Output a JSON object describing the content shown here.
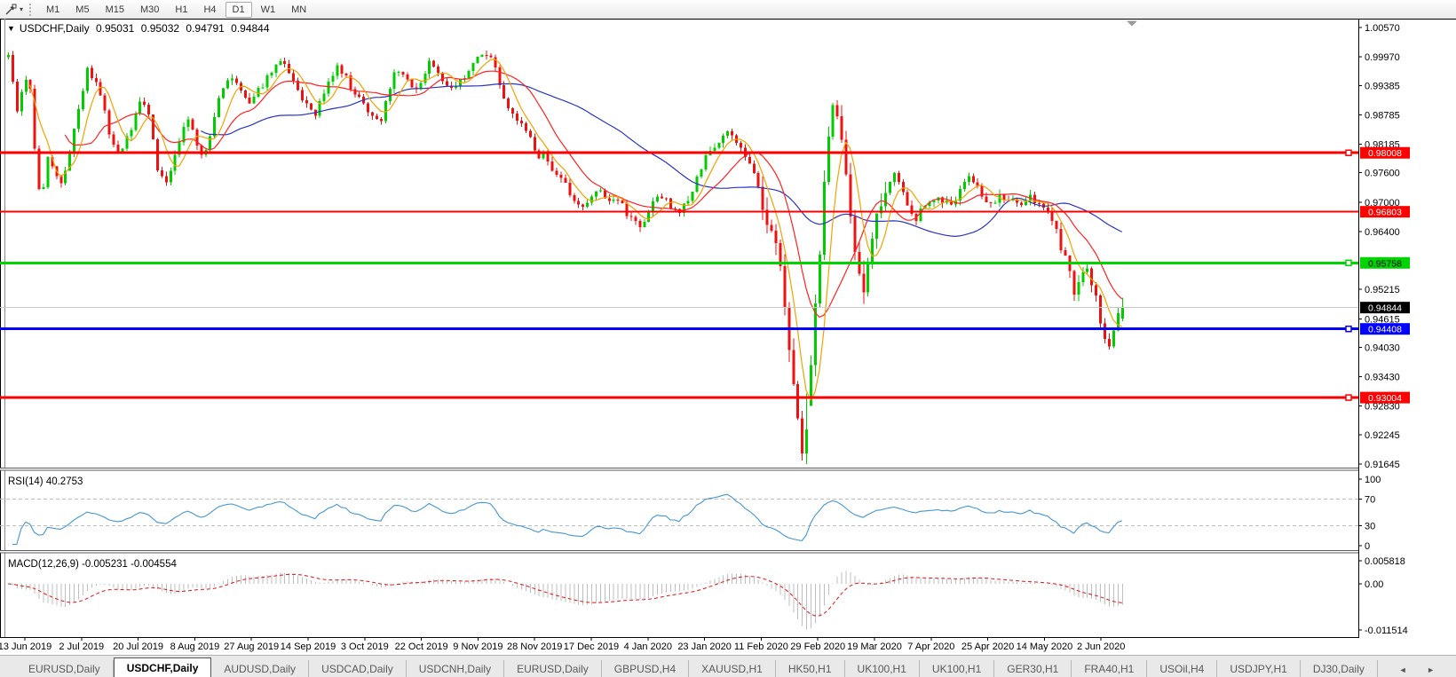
{
  "toolbar": {
    "cursor_icon": "chart-pointer-tool",
    "dropdown_glyph": "▾",
    "timeframes": [
      "M1",
      "M5",
      "M15",
      "M30",
      "H1",
      "H4",
      "D1",
      "W1",
      "MN"
    ],
    "active_timeframe": "D1"
  },
  "chart": {
    "dropdown_glyph": "▼",
    "title": "USDCHF,Daily",
    "open": "0.95031",
    "high": "0.95032",
    "low": "0.94791",
    "close": "0.94844"
  },
  "indicators": {
    "rsi": {
      "label": "RSI(14) 40.2753",
      "period": 14,
      "value": "40.2753",
      "levels": [
        100,
        70,
        30,
        0
      ],
      "line_color": "#4496d4"
    },
    "macd": {
      "label": "MACD(12,26,9) -0.005231 -0.004554",
      "params": "12,26,9",
      "macd_value": "-0.005231",
      "signal_value": "-0.004554",
      "axis_labels": [
        "0.005818",
        "0.00",
        "-0.011514"
      ],
      "histogram_color": "#bfbfbf",
      "signal_color": "#e01212"
    }
  },
  "chart_data": {
    "type": "candlestick",
    "title": "USDCHF,Daily",
    "symbol": "USDCHF",
    "timeframe": "Daily",
    "ohlc": {
      "open": "0.95031",
      "high": "0.95032",
      "low": "0.94791",
      "close": "0.94844"
    },
    "ylim": [
      0.9135,
      1.0075
    ],
    "candle_up_color": "#00cc00",
    "candle_down_color": "#ee1111",
    "y_axis_ticks": [
      "1.00570",
      "0.99970",
      "0.99385",
      "0.98785",
      "0.98185",
      "0.97600",
      "0.97000",
      "0.96400",
      "0.95215",
      "0.94615",
      "0.94030",
      "0.93430",
      "0.92830",
      "0.92245",
      "0.91645"
    ],
    "x_axis_dates": [
      "13 Jun 2019",
      "2 Jul 2019",
      "20 Jul 2019",
      "8 Aug 2019",
      "27 Aug 2019",
      "14 Sep 2019",
      "3 Oct 2019",
      "22 Oct 2019",
      "9 Nov 2019",
      "28 Nov 2019",
      "17 Dec 2019",
      "4 Jan 2020",
      "23 Jan 2020",
      "11 Feb 2020",
      "29 Feb 2020",
      "19 Mar 2020",
      "7 Apr 2020",
      "25 Apr 2020",
      "14 May 2020",
      "2 Jun 2020"
    ],
    "horizontal_lines": [
      {
        "price": "0.98008",
        "color": "#ff0000",
        "label_text_color": "#ffffff",
        "thickness": 3,
        "handle": true
      },
      {
        "price": "0.96803",
        "color": "#ff0000",
        "label_text_color": "#ffffff",
        "thickness": 2,
        "handle": false
      },
      {
        "price": "0.95758",
        "color": "#00d400",
        "label_text_color": "#000000",
        "thickness": 3,
        "handle": true
      },
      {
        "price": "0.94408",
        "color": "#0000ff",
        "label_text_color": "#ffffff",
        "thickness": 3,
        "handle": true
      },
      {
        "price": "0.93004",
        "color": "#ff0000",
        "label_text_color": "#ffffff",
        "thickness": 3,
        "handle": true
      }
    ],
    "current_price": {
      "value": "0.94844",
      "line_color": "#c9c9c9",
      "label_bg": "#000000",
      "label_text_color": "#ffffff"
    },
    "moving_averages": [
      {
        "name": "fast-ma",
        "period": 6,
        "color": "#f2a200"
      },
      {
        "name": "medium-ma",
        "period": 14,
        "color": "#ff2222"
      },
      {
        "name": "slow-ma",
        "period": 45,
        "color": "#2a35c0"
      }
    ],
    "price_path": [
      [
        0,
        0.995
      ],
      [
        8,
        0.9995
      ],
      [
        14,
        1.0
      ],
      [
        20,
        0.987
      ],
      [
        28,
        0.994
      ],
      [
        35,
        0.996
      ],
      [
        42,
        0.979
      ],
      [
        48,
        0.97
      ],
      [
        56,
        0.979
      ],
      [
        64,
        0.9755
      ],
      [
        72,
        0.974
      ],
      [
        80,
        0.98
      ],
      [
        88,
        0.987
      ],
      [
        100,
        0.997
      ],
      [
        108,
        0.995
      ],
      [
        116,
        0.992
      ],
      [
        124,
        0.985
      ],
      [
        132,
        0.98
      ],
      [
        140,
        0.981
      ],
      [
        150,
        0.985
      ],
      [
        160,
        0.991
      ],
      [
        170,
        0.9875
      ],
      [
        180,
        0.976
      ],
      [
        190,
        0.9745
      ],
      [
        198,
        0.9785
      ],
      [
        208,
        0.985
      ],
      [
        215,
        0.987
      ],
      [
        222,
        0.983
      ],
      [
        230,
        0.979
      ],
      [
        240,
        0.984
      ],
      [
        250,
        0.992
      ],
      [
        258,
        0.9955
      ],
      [
        266,
        0.9945
      ],
      [
        275,
        0.992
      ],
      [
        283,
        0.99
      ],
      [
        292,
        0.9925
      ],
      [
        300,
        0.9945
      ],
      [
        310,
        0.9975
      ],
      [
        320,
        0.999
      ],
      [
        330,
        0.996
      ],
      [
        340,
        0.992
      ],
      [
        350,
        0.9895
      ],
      [
        358,
        0.988
      ],
      [
        366,
        0.992
      ],
      [
        374,
        0.9955
      ],
      [
        382,
        0.9975
      ],
      [
        390,
        0.996
      ],
      [
        398,
        0.993
      ],
      [
        406,
        0.992
      ],
      [
        414,
        0.989
      ],
      [
        422,
        0.987
      ],
      [
        430,
        0.986
      ],
      [
        438,
        0.992
      ],
      [
        446,
        0.996
      ],
      [
        454,
        0.997
      ],
      [
        462,
        0.9945
      ],
      [
        470,
        0.993
      ],
      [
        478,
        0.9945
      ],
      [
        486,
        0.9985
      ],
      [
        494,
        0.9965
      ],
      [
        502,
        0.9945
      ],
      [
        510,
        0.993
      ],
      [
        518,
        0.9945
      ],
      [
        526,
        0.996
      ],
      [
        534,
        0.9985
      ],
      [
        542,
        1.0
      ],
      [
        550,
        1.0005
      ],
      [
        558,
        0.9985
      ],
      [
        566,
        0.993
      ],
      [
        574,
        0.989
      ],
      [
        582,
        0.9875
      ],
      [
        590,
        0.986
      ],
      [
        598,
        0.984
      ],
      [
        606,
        0.979
      ],
      [
        614,
        0.98
      ],
      [
        622,
        0.977
      ],
      [
        630,
        0.976
      ],
      [
        638,
        0.9745
      ],
      [
        646,
        0.9705
      ],
      [
        654,
        0.9695
      ],
      [
        662,
        0.969
      ],
      [
        670,
        0.972
      ],
      [
        678,
        0.973
      ],
      [
        686,
        0.97
      ],
      [
        694,
        0.971
      ],
      [
        702,
        0.9695
      ],
      [
        710,
        0.967
      ],
      [
        718,
        0.966
      ],
      [
        726,
        0.9645
      ],
      [
        734,
        0.969
      ],
      [
        742,
        0.9715
      ],
      [
        750,
        0.971
      ],
      [
        758,
        0.9685
      ],
      [
        766,
        0.968
      ],
      [
        774,
        0.9695
      ],
      [
        782,
        0.9725
      ],
      [
        790,
        0.976
      ],
      [
        798,
        0.9795
      ],
      [
        806,
        0.9815
      ],
      [
        814,
        0.9825
      ],
      [
        822,
        0.984
      ],
      [
        830,
        0.983
      ],
      [
        838,
        0.9805
      ],
      [
        846,
        0.9785
      ],
      [
        854,
        0.974
      ],
      [
        862,
        0.969
      ],
      [
        870,
        0.964
      ],
      [
        878,
        0.96
      ],
      [
        884,
        0.952
      ],
      [
        890,
        0.942
      ],
      [
        896,
        0.933
      ],
      [
        902,
        0.923
      ],
      [
        906,
        0.918
      ],
      [
        910,
        0.928
      ],
      [
        914,
        0.933
      ],
      [
        918,
        0.942
      ],
      [
        922,
        0.952
      ],
      [
        926,
        0.96
      ],
      [
        930,
        0.972
      ],
      [
        934,
        0.982
      ],
      [
        938,
        0.988
      ],
      [
        943,
        0.9905
      ],
      [
        948,
        0.987
      ],
      [
        953,
        0.978
      ],
      [
        958,
        0.97
      ],
      [
        964,
        0.962
      ],
      [
        970,
        0.9555
      ],
      [
        976,
        0.952
      ],
      [
        982,
        0.961
      ],
      [
        988,
        0.9665
      ],
      [
        994,
        0.969
      ],
      [
        1000,
        0.9725
      ],
      [
        1008,
        0.976
      ],
      [
        1016,
        0.9735
      ],
      [
        1024,
        0.969
      ],
      [
        1032,
        0.966
      ],
      [
        1040,
        0.9685
      ],
      [
        1048,
        0.97
      ],
      [
        1056,
        0.971
      ],
      [
        1064,
        0.97
      ],
      [
        1072,
        0.9695
      ],
      [
        1080,
        0.9705
      ],
      [
        1088,
        0.974
      ],
      [
        1096,
        0.9755
      ],
      [
        1104,
        0.9725
      ],
      [
        1112,
        0.97
      ],
      [
        1120,
        0.9695
      ],
      [
        1128,
        0.9715
      ],
      [
        1136,
        0.9705
      ],
      [
        1144,
        0.971
      ],
      [
        1152,
        0.9698
      ],
      [
        1160,
        0.9712
      ],
      [
        1168,
        0.97
      ],
      [
        1176,
        0.9692
      ],
      [
        1184,
        0.968
      ],
      [
        1192,
        0.964
      ],
      [
        1200,
        0.9595
      ],
      [
        1207,
        0.955
      ],
      [
        1213,
        0.9512
      ],
      [
        1219,
        0.9545
      ],
      [
        1225,
        0.9568
      ],
      [
        1231,
        0.9535
      ],
      [
        1237,
        0.9508
      ],
      [
        1243,
        0.9445
      ],
      [
        1249,
        0.939
      ],
      [
        1255,
        0.9435
      ],
      [
        1261,
        0.947
      ],
      [
        1266,
        0.94844
      ]
    ],
    "extreme_low_wick": "0.91645"
  },
  "tab_bar": {
    "scroll_left_glyph": "◄",
    "scroll_right_glyph": "►",
    "tabs": [
      {
        "label": "EURUSD,Daily",
        "active": false
      },
      {
        "label": "USDCHF,Daily",
        "active": true
      },
      {
        "label": "AUDUSD,Daily",
        "active": false
      },
      {
        "label": "USDCAD,Daily",
        "active": false
      },
      {
        "label": "USDCNH,Daily",
        "active": false
      },
      {
        "label": "EURUSD,Daily",
        "active": false
      },
      {
        "label": "GBPUSD,H4",
        "active": false
      },
      {
        "label": "XAUUSD,H1",
        "active": false
      },
      {
        "label": "HK50,H1",
        "active": false
      },
      {
        "label": "UK100,H1",
        "active": false
      },
      {
        "label": "UK100,H1",
        "active": false
      },
      {
        "label": "GER30,H1",
        "active": false
      },
      {
        "label": "FRA40,H1",
        "active": false
      },
      {
        "label": "USOil,H4",
        "active": false
      },
      {
        "label": "USDJPY,H1",
        "active": false
      },
      {
        "label": "DJ30,Daily",
        "active": false
      }
    ]
  }
}
